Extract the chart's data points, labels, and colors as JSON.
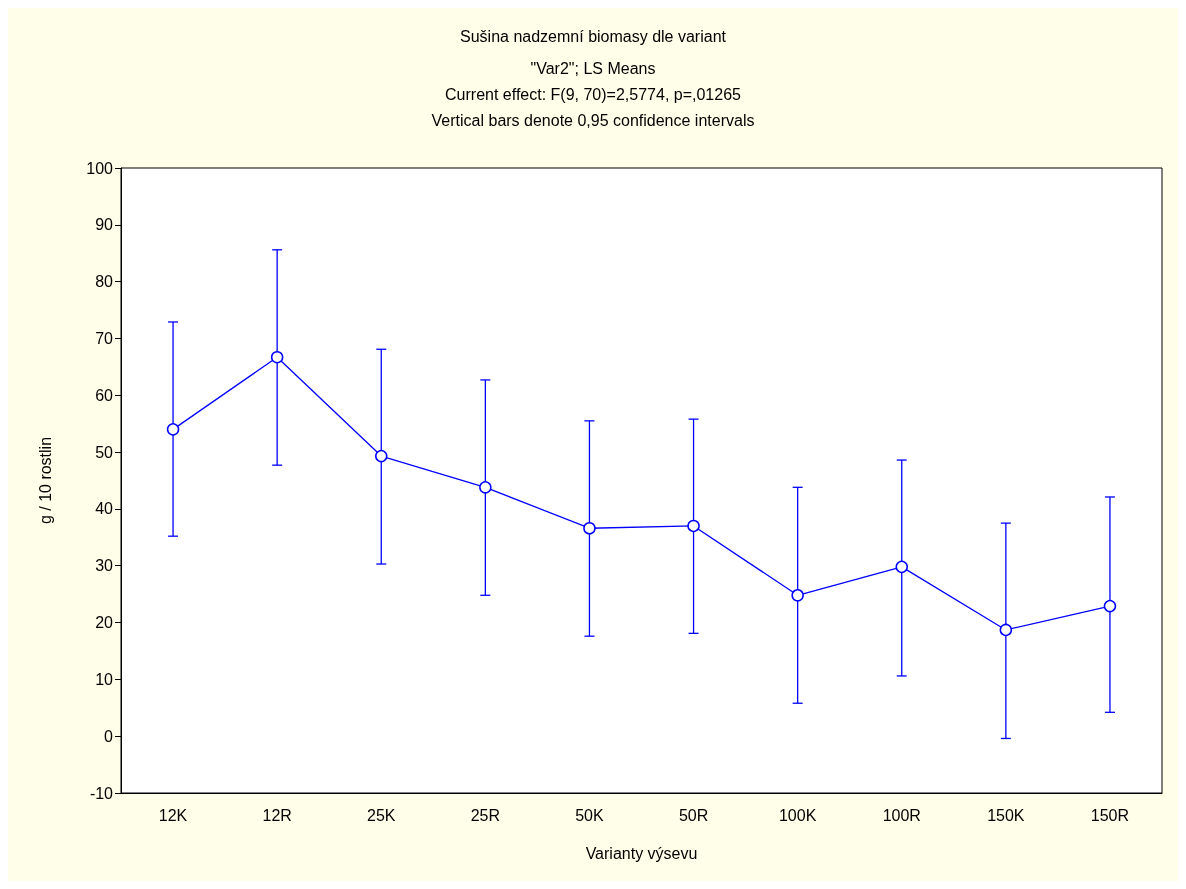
{
  "chart_data": {
    "type": "line",
    "title": "Sušina nadzemní biomasy dle variant",
    "subtitle": "\"Var2\"; LS Means\nCurrent effect: F(9, 70)=2,5774, p=,01265\nVertical bars denote 0,95 confidence intervals",
    "xlabel": "Varianty výsevu",
    "ylabel": "g / 10 rostlin",
    "categories": [
      "12K",
      "12R",
      "25K",
      "25R",
      "50K",
      "50R",
      "100K",
      "100R",
      "150K",
      "150R"
    ],
    "series": [
      {
        "color": "#0000ff",
        "values": [
          54.0,
          66.7,
          49.3,
          43.8,
          36.6,
          37.0,
          24.8,
          29.8,
          18.7,
          22.9
        ],
        "errors": [
          [
            35.2,
            72.9
          ],
          [
            47.7,
            85.6
          ],
          [
            30.3,
            68.1
          ],
          [
            24.8,
            62.7
          ],
          [
            17.6,
            55.5
          ],
          [
            18.1,
            55.8
          ],
          [
            5.8,
            43.8
          ],
          [
            10.6,
            48.6
          ],
          [
            -0.4,
            37.5
          ],
          [
            4.2,
            42.1
          ]
        ]
      }
    ],
    "ylim": [
      -10,
      100
    ],
    "yticks": [
      -10,
      0,
      10,
      20,
      30,
      40,
      50,
      60,
      70,
      80,
      90,
      100
    ],
    "grid": false,
    "marker": "circle",
    "line_style": "solid"
  }
}
